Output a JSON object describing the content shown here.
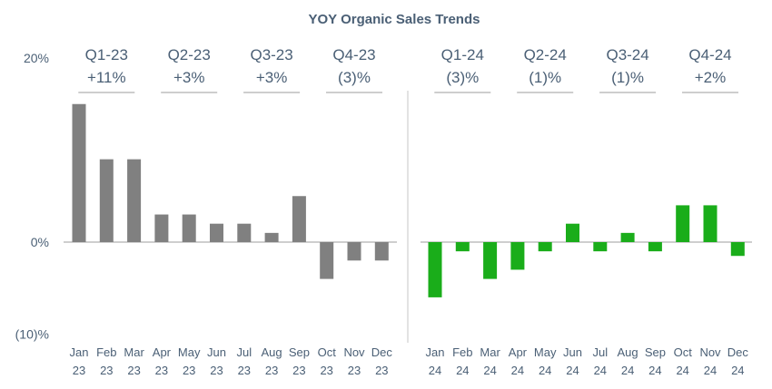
{
  "chart_data": {
    "type": "bar",
    "title": "YOY Organic Sales Trends",
    "ylim": [
      -10,
      20
    ],
    "yticks": [
      "20%",
      "0%",
      "(10)%"
    ],
    "ytick_values": [
      20,
      0,
      -10
    ],
    "grid": false,
    "legend": "none",
    "colors": {
      "2023": "#808080",
      "2024": "#1aad1a",
      "text": "#4a5f75",
      "rule": "#b0b0b0"
    },
    "categories": [
      [
        "Jan",
        "23"
      ],
      [
        "Feb",
        "23"
      ],
      [
        "Mar",
        "23"
      ],
      [
        "Apr",
        "23"
      ],
      [
        "May",
        "23"
      ],
      [
        "Jun",
        "23"
      ],
      [
        "Jul",
        "23"
      ],
      [
        "Aug",
        "23"
      ],
      [
        "Sep",
        "23"
      ],
      [
        "Oct",
        "23"
      ],
      [
        "Nov",
        "23"
      ],
      [
        "Dec",
        "23"
      ],
      [
        "Jan",
        "24"
      ],
      [
        "Feb",
        "24"
      ],
      [
        "Mar",
        "24"
      ],
      [
        "Apr",
        "24"
      ],
      [
        "May",
        "24"
      ],
      [
        "Jun",
        "24"
      ],
      [
        "Jul",
        "24"
      ],
      [
        "Aug",
        "24"
      ],
      [
        "Sep",
        "24"
      ],
      [
        "Oct",
        "24"
      ],
      [
        "Nov",
        "24"
      ],
      [
        "Dec",
        "24"
      ]
    ],
    "values": [
      15,
      9,
      9,
      3,
      3,
      2,
      2,
      1,
      5,
      -4,
      -2,
      -2,
      -6,
      -1,
      -4,
      -3,
      -1,
      2,
      -1,
      1,
      -1,
      4,
      4,
      -1.5
    ],
    "quarters": [
      {
        "name": "Q1-23",
        "value": "+11%"
      },
      {
        "name": "Q2-23",
        "value": "+3%"
      },
      {
        "name": "Q3-23",
        "value": "+3%"
      },
      {
        "name": "Q4-23",
        "value": "(3)%"
      },
      {
        "name": "Q1-24",
        "value": "(3)%"
      },
      {
        "name": "Q2-24",
        "value": "(1)%"
      },
      {
        "name": "Q3-24",
        "value": "(1)%"
      },
      {
        "name": "Q4-24",
        "value": "+2%"
      }
    ]
  }
}
